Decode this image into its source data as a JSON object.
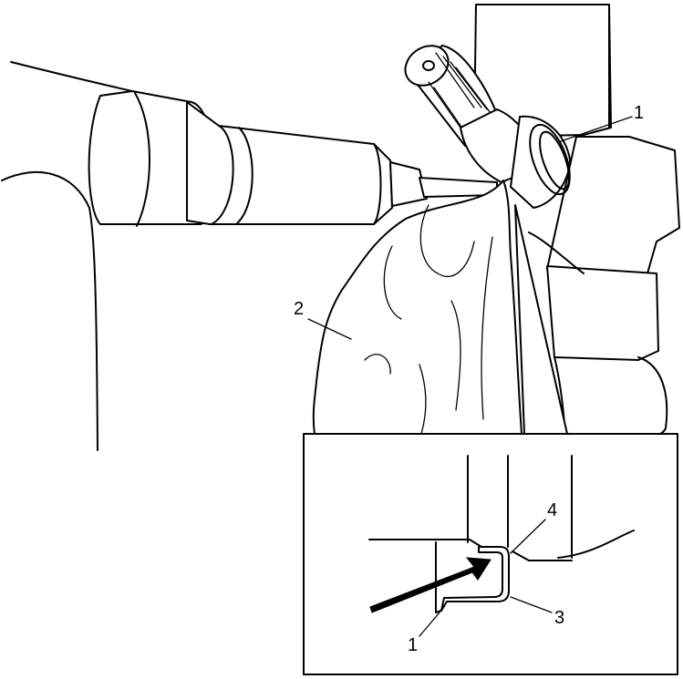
{
  "callouts": {
    "top_1": "1",
    "sleeve_2": "2",
    "detail_4": "4",
    "detail_3": "3",
    "detail_1": "1"
  },
  "colors": {
    "line": "#000000",
    "background": "#ffffff"
  }
}
